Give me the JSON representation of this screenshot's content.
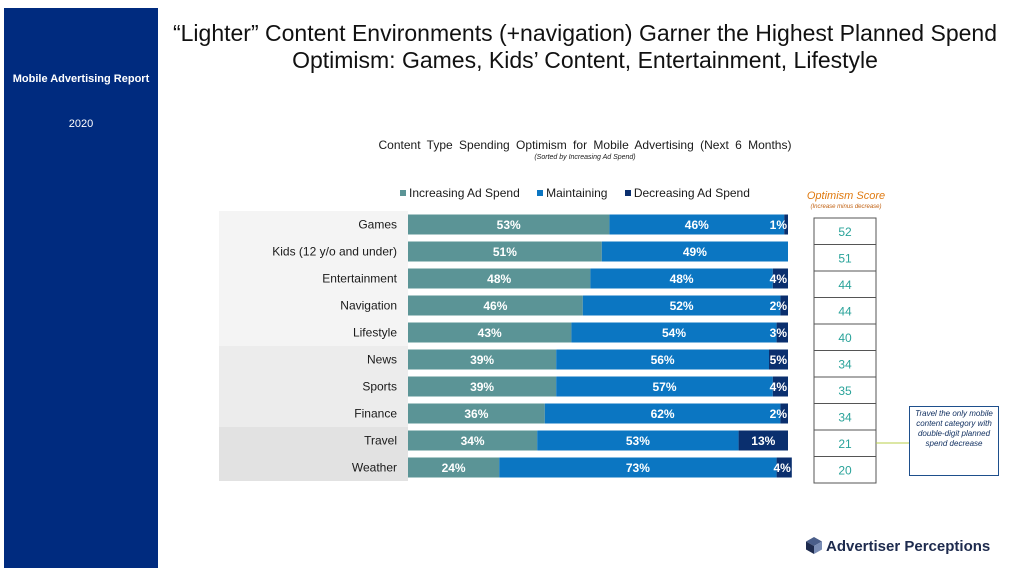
{
  "sidebar": {
    "title": "Mobile Advertising Report",
    "year": "2020"
  },
  "slide": {
    "title": "“Lighter” Content Environments (+navigation) Garner the Highest Planned Spend Optimism: Games, Kids’ Content, Entertainment, Lifestyle"
  },
  "logo": {
    "text": "Advertiser Perceptions"
  },
  "callout": {
    "text": "Travel the only mobile content category with double-digit planned spend decrease"
  },
  "colors": {
    "increasing": "#5b9496",
    "maintaining": "#0b76c2",
    "decreasing": "#0a2f6e",
    "optimism_header": "#e07a10",
    "score_text": "#2aa39a"
  },
  "chart_data": {
    "type": "bar",
    "orientation": "horizontal",
    "stacked": true,
    "title": "Content Type Spending Optimism for Mobile Advertising (Next 6 Months)",
    "subtitle": "(Sorted by Increasing Ad Spend)",
    "categories": [
      "Games",
      "Kids (12 y/o and under)",
      "Entertainment",
      "Navigation",
      "Lifestyle",
      "News",
      "Sports",
      "Finance",
      "Travel",
      "Weather"
    ],
    "series": [
      {
        "name": "Increasing Ad Spend",
        "values": [
          53,
          51,
          48,
          46,
          43,
          39,
          39,
          36,
          34,
          24
        ],
        "labels": [
          "53%",
          "51%",
          "48%",
          "46%",
          "43%",
          "39%",
          "39%",
          "36%",
          "34%",
          "24%"
        ]
      },
      {
        "name": "Maintaining",
        "values": [
          46,
          49,
          48,
          52,
          54,
          56,
          57,
          62,
          53,
          73
        ],
        "labels": [
          "46%",
          "49%",
          "48%",
          "52%",
          "54%",
          "56%",
          "57%",
          "62%",
          "53%",
          "73%"
        ]
      },
      {
        "name": "Decreasing Ad Spend",
        "values": [
          1,
          0,
          4,
          2,
          3,
          5,
          4,
          2,
          13,
          4
        ],
        "labels": [
          "1%",
          "",
          "4%",
          "2%",
          "3%",
          "5%",
          "4%",
          "2%",
          "13%",
          "4%"
        ]
      }
    ],
    "xlim": [
      0,
      100
    ],
    "legend_position": "top",
    "optimism_score": {
      "title": "Optimism Score",
      "subtitle": "(Increase minus decrease)",
      "values": [
        52,
        51,
        44,
        44,
        40,
        34,
        35,
        34,
        21,
        20
      ]
    }
  }
}
